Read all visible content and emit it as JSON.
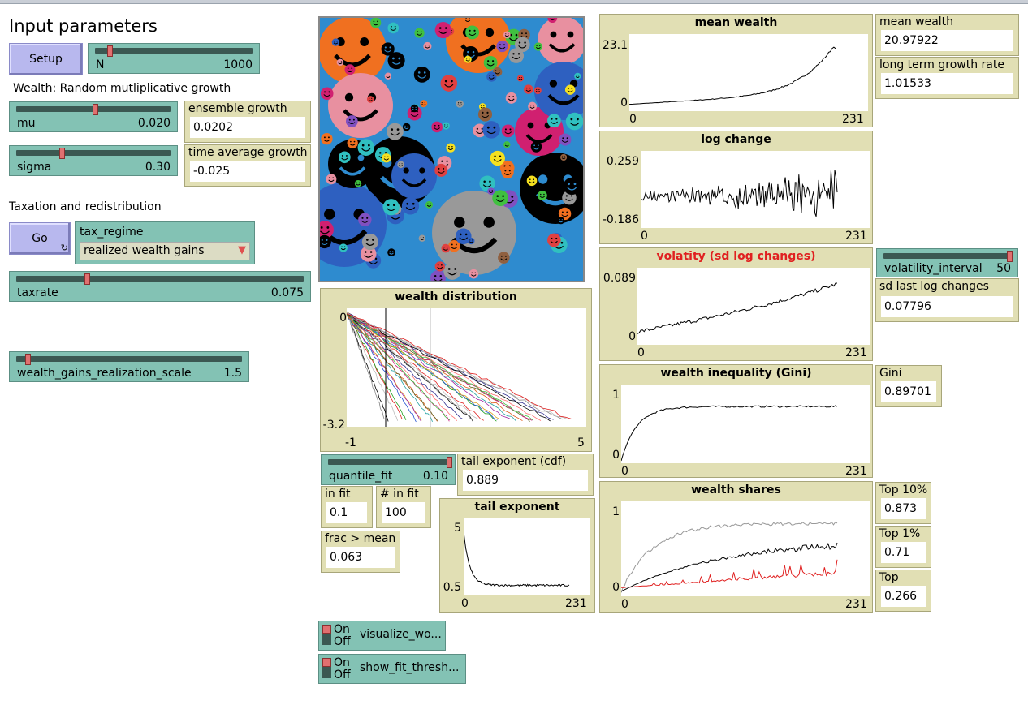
{
  "labels": {
    "input_parameters": "Input parameters",
    "wealth_section": "Wealth: Random mutliplicative growth",
    "tax_section": "Taxation and redistribution"
  },
  "buttons": {
    "setup": "Setup",
    "go": "Go"
  },
  "sliders": {
    "n": {
      "name": "N",
      "value": "1000",
      "fraction": 0.04
    },
    "mu": {
      "name": "mu",
      "value": "0.020",
      "fraction": 0.52
    },
    "sigma": {
      "name": "sigma",
      "value": "0.30",
      "fraction": 0.28
    },
    "taxrate": {
      "name": "taxrate",
      "value": "0.075",
      "fraction": 0.25
    },
    "wealth_gains": {
      "name": "wealth_gains_realization_scale",
      "value": "1.5",
      "fraction": 0.02
    },
    "quantile_fit": {
      "name": "quantile_fit",
      "value": "0.10",
      "fraction": 1.0
    },
    "volatility_interval": {
      "name": "volatility_interval",
      "value": "50",
      "fraction": 1.0
    }
  },
  "chooser": {
    "name": "tax_regime",
    "value": "realized wealth gains"
  },
  "monitors": {
    "ensemble_growth": {
      "name": "ensemble growth",
      "value": "0.0202"
    },
    "time_average_growth": {
      "name": "time average growth",
      "value": "-0.025"
    },
    "mean_wealth": {
      "name": "mean wealth",
      "value": "20.97922"
    },
    "long_term_growth_rate": {
      "name": "long term growth rate",
      "value": "1.01533"
    },
    "sd_last_log_changes": {
      "name": "sd last log changes",
      "value": "0.07796"
    },
    "gini": {
      "name": "Gini",
      "value": "0.89701"
    },
    "top10": {
      "name": "Top 10%",
      "value": "0.873"
    },
    "top1": {
      "name": "Top 1%",
      "value": "0.71"
    },
    "top": {
      "name": "Top",
      "value": "0.266"
    },
    "tail_exponent_cdf": {
      "name": "tail exponent (cdf)",
      "value": "0.889"
    },
    "in_fit": {
      "name": "in fit",
      "value": "0.1"
    },
    "n_in_fit": {
      "name": "# in fit",
      "value": "100"
    },
    "frac_gt_mean": {
      "name": "frac > mean",
      "value": "0.063"
    }
  },
  "switches": {
    "visualize": {
      "name": "visualize_wo...",
      "on": "On",
      "off": "Off"
    },
    "show_fit": {
      "name": "show_fit_thresh...",
      "on": "On",
      "off": "Off"
    }
  },
  "plots": {
    "mean_wealth": {
      "title": "mean wealth",
      "ymax": "23.1",
      "ymin": "0",
      "xmin": "0",
      "xmax": "231"
    },
    "log_change": {
      "title": "log change",
      "ymax": "0.259",
      "ymin": "-0.186",
      "xmin": "0",
      "xmax": "231"
    },
    "volatility": {
      "title": "volatity (sd log changes)",
      "ymax": "0.089",
      "ymin": "0",
      "xmin": "0",
      "xmax": "231",
      "title_color": "#e02020"
    },
    "gini": {
      "title": "wealth inequality (Gini)",
      "ymax": "1",
      "ymin": "0",
      "xmin": "0",
      "xmax": "231"
    },
    "wealth_shares": {
      "title": "wealth shares",
      "ymax": "1",
      "ymin": "0",
      "xmin": "0",
      "xmax": "231"
    },
    "wealth_distribution": {
      "title": "wealth distribution",
      "ymax": "0",
      "ymin": "-3.2",
      "xmin": "-1",
      "xmax": "5"
    },
    "tail_exponent": {
      "title": "tail exponent",
      "ymax": "5",
      "ymin": "0.5",
      "xmin": "0",
      "xmax": "231"
    }
  },
  "colors": {
    "slider": "#83c2b4",
    "monitor": "#e1dfb4",
    "button": "#b8b8ee",
    "world_bg": "#2e8bcf",
    "red_series": "#e02020",
    "gray_series": "#999999"
  }
}
